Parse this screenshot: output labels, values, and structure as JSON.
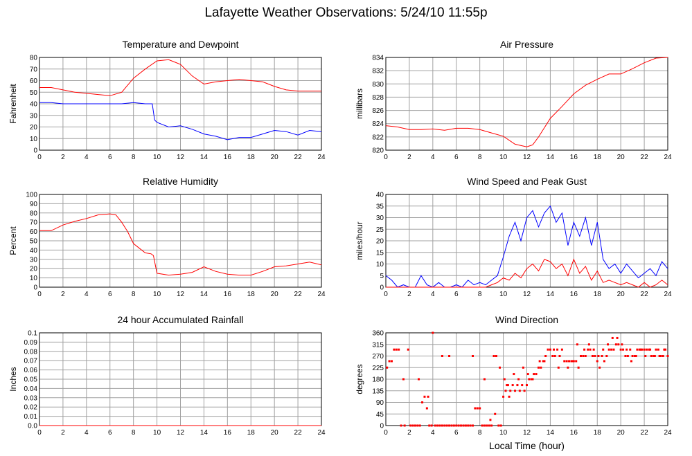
{
  "page": {
    "title": "Lafayette Weather Observations: 5/24/10 11:55p",
    "xlabel": "Local Time (hour)"
  },
  "colors": {
    "red": "#ff0000",
    "blue": "#0000ff",
    "grid": "#a0a0a0"
  },
  "chart_data": [
    {
      "type": "line",
      "title": "Temperature and Dewpoint",
      "ylabel": "Fahrenheit",
      "xlim": [
        0,
        24
      ],
      "xticks": [
        0,
        2,
        4,
        6,
        8,
        10,
        12,
        14,
        16,
        18,
        20,
        22,
        24
      ],
      "ylim": [
        0,
        80
      ],
      "yticks": [
        0,
        10,
        20,
        30,
        40,
        50,
        60,
        70,
        80
      ],
      "grid": true,
      "series": [
        {
          "color": "#ff0000",
          "x": [
            0,
            1,
            2,
            3,
            4,
            5,
            6,
            7,
            8,
            9,
            10,
            11,
            12,
            13,
            14,
            15,
            16,
            17,
            18,
            19,
            20,
            21,
            22,
            23,
            24
          ],
          "y": [
            54,
            54,
            52,
            50,
            49,
            48,
            47,
            50,
            62,
            70,
            77,
            78,
            74,
            64,
            57,
            59,
            60,
            61,
            60,
            59,
            55,
            52,
            51,
            51,
            51
          ]
        },
        {
          "color": "#0000ff",
          "x": [
            0,
            1,
            2,
            3,
            4,
            5,
            6,
            7,
            8,
            9,
            9.6,
            9.8,
            10,
            11,
            12,
            13,
            14,
            15,
            16,
            17,
            18,
            19,
            20,
            21,
            22,
            23,
            24
          ],
          "y": [
            41,
            41,
            40,
            40,
            40,
            40,
            40,
            40,
            41,
            40,
            40,
            26,
            24,
            20,
            21,
            18,
            14,
            12,
            9,
            11,
            11,
            14,
            17,
            16,
            13,
            17,
            16
          ]
        }
      ]
    },
    {
      "type": "line",
      "title": "Air Pressure",
      "ylabel": "millibars",
      "xlim": [
        0,
        24
      ],
      "xticks": [
        0,
        2,
        4,
        6,
        8,
        10,
        12,
        14,
        16,
        18,
        20,
        22,
        24
      ],
      "ylim": [
        820,
        834
      ],
      "yticks": [
        820,
        822,
        824,
        826,
        828,
        830,
        832,
        834
      ],
      "grid": true,
      "series": [
        {
          "color": "#ff0000",
          "x": [
            0,
            1,
            2,
            3,
            4,
            5,
            6,
            7,
            8,
            9,
            10,
            11,
            12,
            12.5,
            13,
            14,
            15,
            16,
            17,
            18,
            19,
            20,
            21,
            22,
            23,
            24
          ],
          "y": [
            823.7,
            823.5,
            823.1,
            823.1,
            823.2,
            823.0,
            823.3,
            823.3,
            823.1,
            822.6,
            822.1,
            820.9,
            820.5,
            820.8,
            822.0,
            824.8,
            826.6,
            828.5,
            829.8,
            830.7,
            831.5,
            831.5,
            832.3,
            833.2,
            833.9,
            834.0
          ]
        }
      ]
    },
    {
      "type": "line",
      "title": "Relative Humidity",
      "ylabel": "Percent",
      "xlim": [
        0,
        24
      ],
      "xticks": [
        0,
        2,
        4,
        6,
        8,
        10,
        12,
        14,
        16,
        18,
        20,
        22,
        24
      ],
      "ylim": [
        0,
        100
      ],
      "yticks": [
        0,
        10,
        20,
        30,
        40,
        50,
        60,
        70,
        80,
        90,
        100
      ],
      "grid": true,
      "series": [
        {
          "color": "#ff0000",
          "x": [
            0,
            1,
            2,
            3,
            4,
            5,
            6,
            6.5,
            7,
            7.5,
            8,
            8.5,
            9,
            9.5,
            9.7,
            10,
            11,
            12,
            13,
            14,
            15,
            16,
            17,
            18,
            19,
            20,
            21,
            22,
            23,
            24
          ],
          "y": [
            61,
            61,
            67,
            71,
            74,
            78,
            79,
            78,
            70,
            60,
            47,
            42,
            37,
            36,
            34,
            15,
            13,
            14,
            16,
            22,
            17,
            14,
            13,
            13,
            17,
            22,
            23,
            25,
            27,
            24
          ]
        }
      ]
    },
    {
      "type": "line",
      "title": "Wind Speed and Peak Gust",
      "ylabel": "miles/hour",
      "xlim": [
        0,
        24
      ],
      "xticks": [
        0,
        2,
        4,
        6,
        8,
        10,
        12,
        14,
        16,
        18,
        20,
        22,
        24
      ],
      "ylim": [
        0,
        40
      ],
      "yticks": [
        0,
        5,
        10,
        15,
        20,
        25,
        30,
        35,
        40
      ],
      "grid": true,
      "series": [
        {
          "color": "#0000ff",
          "x": [
            0,
            0.5,
            1,
            1.5,
            2,
            2.5,
            3,
            3.5,
            4,
            4.5,
            5,
            5.5,
            6,
            6.5,
            7,
            7.5,
            8,
            8.5,
            9,
            9.5,
            10,
            10.5,
            11,
            11.5,
            12,
            12.5,
            13,
            13.5,
            14,
            14.5,
            15,
            15.5,
            16,
            16.5,
            17,
            17.5,
            18,
            18.5,
            19,
            19.5,
            20,
            20.5,
            21,
            21.5,
            22,
            22.5,
            23,
            23.5,
            24
          ],
          "y": [
            5,
            3,
            0,
            1,
            0,
            0,
            5,
            1,
            0,
            2,
            0,
            0,
            1,
            0,
            3,
            1,
            2,
            1,
            3,
            5,
            13,
            22,
            28,
            20,
            30,
            33,
            26,
            32,
            35,
            28,
            32,
            18,
            28,
            22,
            30,
            18,
            28,
            12,
            8,
            10,
            6,
            10,
            7,
            4,
            6,
            8,
            5,
            11,
            8
          ]
        },
        {
          "color": "#ff0000",
          "x": [
            0,
            0.5,
            1,
            1.5,
            2,
            2.5,
            3,
            3.5,
            4,
            4.5,
            5,
            5.5,
            6,
            6.5,
            7,
            7.5,
            8,
            8.5,
            9,
            9.5,
            10,
            10.5,
            11,
            11.5,
            12,
            12.5,
            13,
            13.5,
            14,
            14.5,
            15,
            15.5,
            16,
            16.5,
            17,
            17.5,
            18,
            18.5,
            19,
            19.5,
            20,
            20.5,
            21,
            21.5,
            22,
            22.5,
            23,
            23.5,
            24
          ],
          "y": [
            0,
            0,
            0,
            0,
            0,
            0,
            0,
            0,
            0,
            0,
            0,
            0,
            0,
            0,
            0,
            0,
            0,
            0,
            1,
            2,
            4,
            3,
            6,
            4,
            8,
            10,
            7,
            12,
            11,
            8,
            10,
            5,
            12,
            6,
            9,
            3,
            7,
            2,
            3,
            2,
            1,
            2,
            1,
            0,
            2,
            0,
            1,
            3,
            1
          ]
        }
      ]
    },
    {
      "type": "line",
      "title": "24 hour Accumulated Rainfall",
      "ylabel": "Inches",
      "xlim": [
        0,
        24
      ],
      "xticks": [
        0,
        2,
        4,
        6,
        8,
        10,
        12,
        14,
        16,
        18,
        20,
        22,
        24
      ],
      "ylim": [
        0,
        0.1
      ],
      "yticks": [
        "0.0",
        "0.01",
        "0.02",
        "0.03",
        "0.04",
        "0.05",
        "0.06",
        "0.07",
        "0.08",
        "0.09",
        "0.1"
      ],
      "grid": true,
      "series": [
        {
          "color": "#ff0000",
          "x": [
            0,
            24
          ],
          "y": [
            0,
            0
          ]
        }
      ]
    },
    {
      "type": "scatter",
      "title": "Wind Direction",
      "ylabel": "degrees",
      "xlim": [
        0,
        24
      ],
      "xticks": [
        0,
        2,
        4,
        6,
        8,
        10,
        12,
        14,
        16,
        18,
        20,
        22,
        24
      ],
      "ylim": [
        0,
        360
      ],
      "yticks": [
        0,
        45,
        90,
        135,
        180,
        225,
        270,
        315,
        360
      ],
      "grid": true,
      "series": [
        {
          "color": "#ff0000",
          "x": [
            0.1,
            0.3,
            0.5,
            0.7,
            0.9,
            1.1,
            1.3,
            1.6,
            1.9,
            2.1,
            2.3,
            2.5,
            2.7,
            2.9,
            3.1,
            3.3,
            3.5,
            3.7,
            3.9,
            4.0,
            4.2,
            4.4,
            4.6,
            4.8,
            5.0,
            5.2,
            5.4,
            5.6,
            5.8,
            6.0,
            6.2,
            6.4,
            6.6,
            6.8,
            7.0,
            7.2,
            7.4,
            7.6,
            7.8,
            8.0,
            8.2,
            8.4,
            8.6,
            8.8,
            9.0,
            9.2,
            9.4,
            9.6,
            9.8,
            10.0,
            10.2,
            10.4,
            10.6,
            10.8,
            11.0,
            11.2,
            11.4,
            11.6,
            11.8,
            12.0,
            12.2,
            12.4,
            12.6,
            12.8,
            13.0,
            13.2,
            13.4,
            13.6,
            13.8,
            14.0,
            14.2,
            14.4,
            14.6,
            14.8,
            15.0,
            15.2,
            15.4,
            15.6,
            15.8,
            16.0,
            16.2,
            16.4,
            16.6,
            16.8,
            17.0,
            17.2,
            17.4,
            17.6,
            17.8,
            18.0,
            18.2,
            18.4,
            18.6,
            18.8,
            19.0,
            19.2,
            19.4,
            19.6,
            19.8,
            20.0,
            20.2,
            20.4,
            20.6,
            20.8,
            21.0,
            21.2,
            21.4,
            21.6,
            21.8,
            22.0,
            22.2,
            22.4,
            22.6,
            22.8,
            23.0,
            23.2,
            23.4,
            23.6,
            23.8,
            24.0,
            1.5,
            2.8,
            3.6,
            4.8,
            5.4,
            6.8,
            7.4,
            8.4,
            8.9,
            9.3,
            9.7,
            10.1,
            10.3,
            10.5,
            10.9,
            11.3,
            11.7,
            12.1,
            12.5,
            13.1,
            13.5,
            14.3,
            14.7,
            15.5,
            15.9,
            16.3,
            16.9,
            17.3,
            17.7,
            18.1,
            18.5,
            18.9,
            19.3,
            19.7,
            20.1,
            20.5,
            20.9,
            21.3,
            21.7,
            22.1,
            22.5,
            22.9,
            23.3,
            23.7
          ],
          "y": [
            225,
            250,
            250,
            295,
            295,
            295,
            0,
            0,
            295,
            0,
            0,
            0,
            0,
            0,
            90,
            112,
            67,
            0,
            0,
            360,
            0,
            0,
            0,
            0,
            0,
            0,
            0,
            0,
            0,
            0,
            0,
            0,
            0,
            0,
            0,
            0,
            0,
            67,
            67,
            67,
            0,
            0,
            0,
            0,
            0,
            270,
            270,
            0,
            0,
            112,
            135,
            157,
            135,
            157,
            135,
            157,
            135,
            157,
            135,
            157,
            180,
            180,
            200,
            200,
            225,
            225,
            250,
            270,
            295,
            295,
            270,
            270,
            295,
            270,
            295,
            250,
            250,
            250,
            250,
            250,
            250,
            225,
            270,
            270,
            270,
            295,
            295,
            270,
            270,
            250,
            225,
            270,
            250,
            270,
            295,
            295,
            295,
            315,
            315,
            295,
            295,
            270,
            270,
            295,
            270,
            270,
            295,
            295,
            295,
            295,
            295,
            295,
            270,
            270,
            295,
            295,
            270,
            270,
            295,
            270,
            180,
            180,
            112,
            270,
            270,
            0,
            270,
            180,
            22,
            45,
            225,
            180,
            157,
            112,
            200,
            180,
            225,
            200,
            180,
            250,
            250,
            295,
            225,
            225,
            250,
            315,
            295,
            315,
            295,
            270,
            295,
            315,
            340,
            340,
            315,
            295,
            250,
            270,
            295,
            270,
            295,
            270,
            270,
            295
          ]
        }
      ]
    }
  ]
}
